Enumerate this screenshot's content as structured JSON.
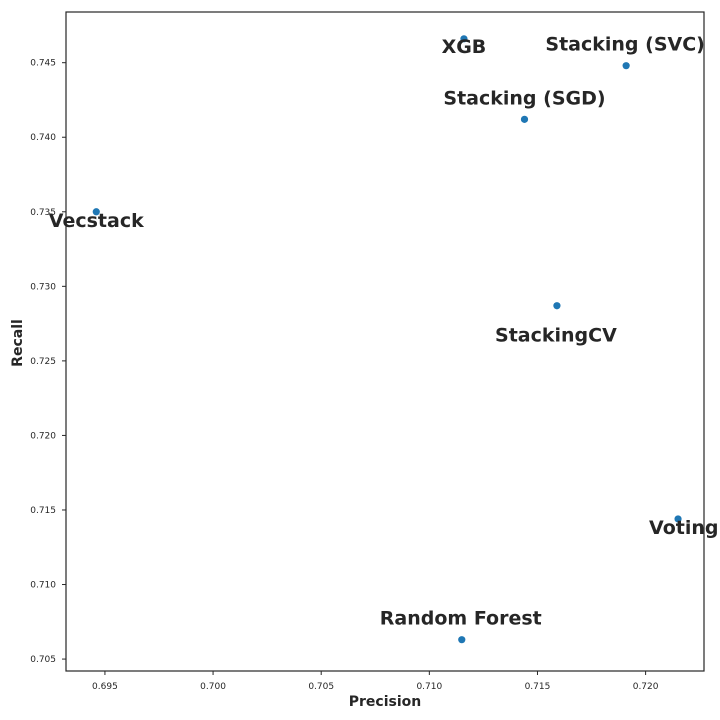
{
  "chart_data": {
    "type": "scatter",
    "xlabel": "Precision",
    "ylabel": "Recall",
    "xlim": [
      0.6932,
      0.7227
    ],
    "ylim": [
      0.7042,
      0.7484
    ],
    "x_ticks": [
      "0.695",
      "0.700",
      "0.705",
      "0.710",
      "0.715",
      "0.720"
    ],
    "y_ticks": [
      "0.705",
      "0.710",
      "0.715",
      "0.720",
      "0.725",
      "0.730",
      "0.735",
      "0.740",
      "0.745"
    ],
    "grid": false,
    "point_color": "#1f77b4",
    "points": [
      {
        "label": "XGB",
        "x": 0.7116,
        "y": 0.7466
      },
      {
        "label": "Stacking (SVC)",
        "x": 0.7191,
        "y": 0.7448
      },
      {
        "label": "Stacking (SGD)",
        "x": 0.7144,
        "y": 0.7412
      },
      {
        "label": "Vecstack",
        "x": 0.6946,
        "y": 0.735
      },
      {
        "label": "StackingCV",
        "x": 0.7159,
        "y": 0.7287
      },
      {
        "label": "Voting",
        "x": 0.7215,
        "y": 0.7144
      },
      {
        "label": "Random Forest",
        "x": 0.7115,
        "y": 0.7063
      }
    ]
  }
}
